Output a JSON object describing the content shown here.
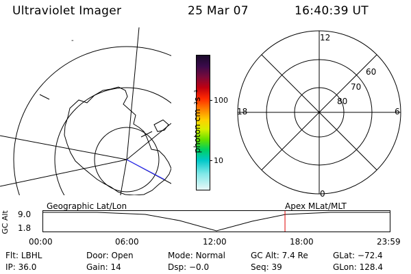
{
  "header": {
    "title": "Ultraviolet Imager",
    "date": "25 Mar 07",
    "time": "16:40:39 UT"
  },
  "colorbar": {
    "unit_label": "photon cm⁻²s⁻¹",
    "ticks": [
      "100",
      "10"
    ]
  },
  "right_map": {
    "mlt_labels": {
      "top": "12",
      "left": "18",
      "right": "6",
      "bottom": "0"
    },
    "lat_labels": [
      "60",
      "70",
      "80"
    ]
  },
  "timeline": {
    "left_title": "Geographic Lat/Lon",
    "right_title": "Apex MLat/MLT",
    "yaxis_label": "GC Alt",
    "y_ticks": [
      "9.0",
      "1.8"
    ],
    "x_ticks": [
      "00:00",
      "06:00",
      "12:00",
      "18:00",
      "23:59"
    ],
    "current_time_fraction": 0.6977,
    "marker_color": "#e00000"
  },
  "status": {
    "row1": [
      {
        "key": "Flt:",
        "value": "LBHL"
      },
      {
        "key": "Door:",
        "value": "Open"
      },
      {
        "key": "Mode:",
        "value": "Normal"
      },
      {
        "key": "GC Alt:",
        "value": "7.4 Re"
      },
      {
        "key": "GLat:",
        "value": "−72.4"
      }
    ],
    "row2": [
      {
        "key": "IP:",
        "value": "36.0"
      },
      {
        "key": "Gain:",
        "value": "14"
      },
      {
        "key": "Dsp:",
        "value": "−0.0"
      },
      {
        "key": "Seq:",
        "value": "39"
      },
      {
        "key": "GLon:",
        "value": "128.4"
      }
    ]
  }
}
